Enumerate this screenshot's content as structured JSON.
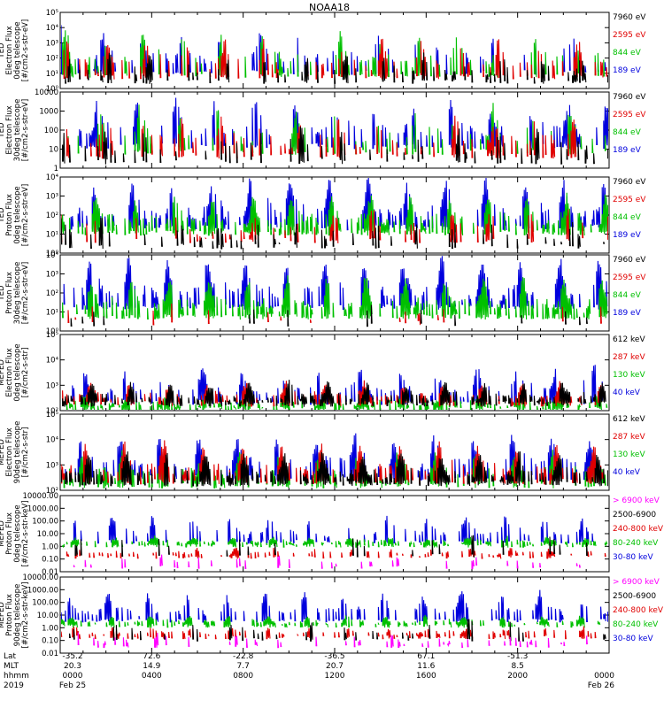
{
  "title": "NOAA18",
  "chart_data": {
    "type": "line",
    "title": "NOAA18",
    "x_ticks": [
      "0000",
      "0400",
      "0800",
      "1200",
      "1600",
      "2000",
      "0000"
    ],
    "x_range_hours": [
      0,
      24
    ],
    "panels": [
      {
        "ylabel_lines": [
          "TED",
          "Electron Flux",
          "0deg telescope",
          "[#/cm2-s-str-eV]"
        ],
        "yticks": [
          "10⁰",
          "10¹",
          "10²",
          "10³",
          "10⁴",
          "10⁵"
        ],
        "ylim_log10": [
          0,
          5
        ],
        "series": [
          {
            "name": "7960 eV",
            "color": "#000000",
            "base": 0.6,
            "amp": 1.6,
            "density": 0.35
          },
          {
            "name": "2595 eV",
            "color": "#e00000",
            "base": 0.9,
            "amp": 2.4,
            "density": 0.45
          },
          {
            "name": "844 eV",
            "color": "#00c000",
            "base": 1.0,
            "amp": 2.7,
            "density": 0.35
          },
          {
            "name": "189 eV",
            "color": "#0000dd",
            "base": 1.2,
            "amp": 2.5,
            "density": 0.4
          }
        ]
      },
      {
        "ylabel_lines": [
          "TED",
          "Electron Flux",
          "30deg telescope",
          "[#/cm2-s-str-eV]"
        ],
        "yticks": [
          "1",
          "10",
          "100",
          "1000",
          "10000"
        ],
        "ylim_log10": [
          0,
          4
        ],
        "series": [
          {
            "name": "7960 eV",
            "color": "#000000",
            "base": 0.5,
            "amp": 1.5,
            "density": 0.3
          },
          {
            "name": "2595 eV",
            "color": "#e00000",
            "base": 0.8,
            "amp": 2.0,
            "density": 0.4
          },
          {
            "name": "844 eV",
            "color": "#00c000",
            "base": 1.0,
            "amp": 2.3,
            "density": 0.3
          },
          {
            "name": "189 eV",
            "color": "#0000dd",
            "base": 1.3,
            "amp": 2.2,
            "density": 0.45
          }
        ]
      },
      {
        "ylabel_lines": [
          "TED",
          "Proton Flux",
          "0deg telescope",
          "[#/cm2-s-str-eV]"
        ],
        "yticks": [
          "10⁰",
          "10¹",
          "10²",
          "10³",
          "10⁴"
        ],
        "ylim_log10": [
          0,
          4
        ],
        "series": [
          {
            "name": "7960 eV",
            "color": "#000000",
            "base": 0.5,
            "amp": 1.2,
            "density": 0.3
          },
          {
            "name": "2595 eV",
            "color": "#e00000",
            "base": 0.8,
            "amp": 1.4,
            "density": 0.3
          },
          {
            "name": "844 eV",
            "color": "#00c000",
            "base": 1.2,
            "amp": 1.8,
            "density": 0.85
          },
          {
            "name": "189 eV",
            "color": "#0000dd",
            "base": 1.5,
            "amp": 2.2,
            "density": 0.75
          }
        ]
      },
      {
        "ylabel_lines": [
          "TED",
          "Proton Flux",
          "30deg telescope",
          "[#/cm2-s-str-eV]"
        ],
        "yticks": [
          "10⁰",
          "10¹",
          "10²",
          "10³",
          "10⁴"
        ],
        "ylim_log10": [
          0,
          4
        ],
        "series": [
          {
            "name": "7960 eV",
            "color": "#000000",
            "base": 0.5,
            "amp": 0.8,
            "density": 0.1
          },
          {
            "name": "2595 eV",
            "color": "#e00000",
            "base": 0.6,
            "amp": 0.8,
            "density": 0.1
          },
          {
            "name": "844 eV",
            "color": "#00c000",
            "base": 0.9,
            "amp": 1.9,
            "density": 0.85
          },
          {
            "name": "189 eV",
            "color": "#0000dd",
            "base": 1.4,
            "amp": 2.3,
            "density": 0.75
          }
        ]
      },
      {
        "ylabel_lines": [
          "MEPED",
          "Electron Flux",
          "0deg telescope",
          "[#/cm2-s-str]"
        ],
        "yticks": [
          "10²",
          "10³",
          "10⁴",
          "10⁵"
        ],
        "ylim_log10": [
          2,
          6
        ],
        "series": [
          {
            "name": "612 keV",
            "color": "#000000",
            "base": 2.5,
            "amp": 0.9,
            "density": 0.9
          },
          {
            "name": "287 keV",
            "color": "#e00000",
            "base": 2.5,
            "amp": 0.9,
            "density": 0.7
          },
          {
            "name": "130 keV",
            "color": "#00c000",
            "base": 2.2,
            "amp": 0.6,
            "density": 0.8
          },
          {
            "name": "40 keV",
            "color": "#0000dd",
            "base": 2.6,
            "amp": 1.6,
            "density": 0.6
          }
        ]
      },
      {
        "ylabel_lines": [
          "MEPED",
          "Electron Flux",
          "90deg telescope",
          "[#/cm2-s-str]"
        ],
        "yticks": [
          "10²",
          "10³",
          "10⁴",
          "10⁵"
        ],
        "ylim_log10": [
          2,
          6
        ],
        "series": [
          {
            "name": "612 keV",
            "color": "#000000",
            "base": 2.5,
            "amp": 1.4,
            "density": 0.9
          },
          {
            "name": "287 keV",
            "color": "#e00000",
            "base": 2.6,
            "amp": 1.8,
            "density": 0.8
          },
          {
            "name": "130 keV",
            "color": "#00c000",
            "base": 2.4,
            "amp": 1.6,
            "density": 0.6
          },
          {
            "name": "40 keV",
            "color": "#0000dd",
            "base": 2.8,
            "amp": 2.0,
            "density": 0.7
          }
        ]
      },
      {
        "ylabel_lines": [
          "MEPED",
          "Proton Flux",
          "0deg telescope",
          "[#/cm2-s-str-keV]"
        ],
        "yticks": [
          "0.01",
          "0.10",
          "1.00",
          "10.00",
          "100.00",
          "1000.00",
          "10000.00"
        ],
        "ylim_log10": [
          -2,
          4
        ],
        "series": [
          {
            "name": "> 6900 keV",
            "color": "#ff00ff",
            "base": -1.5,
            "amp": 0.7,
            "density": 0.15
          },
          {
            "name": "2500-6900",
            "color": "#000000",
            "base": -0.6,
            "amp": 1.5,
            "density": 0.15
          },
          {
            "name": "240-800 keV",
            "color": "#e00000",
            "base": -0.7,
            "amp": 0.5,
            "density": 0.5
          },
          {
            "name": "80-240 keV",
            "color": "#00c000",
            "base": 0.2,
            "amp": 0.5,
            "density": 0.8
          },
          {
            "name": "30-80 keV",
            "color": "#0000dd",
            "base": 0.5,
            "amp": 1.8,
            "density": 0.5
          }
        ]
      },
      {
        "ylabel_lines": [
          "MEPED",
          "Proton Flux",
          "90deg telescope",
          "[#/cm2-s-str-keV]"
        ],
        "yticks": [
          "0.01",
          "0.10",
          "1.00",
          "10.00",
          "100.00",
          "1000.00",
          "10000.00"
        ],
        "ylim_log10": [
          -2,
          4
        ],
        "series": [
          {
            "name": "> 6900 keV",
            "color": "#ff00ff",
            "base": -1.3,
            "amp": 0.8,
            "density": 0.25
          },
          {
            "name": "2500-6900",
            "color": "#000000",
            "base": -0.8,
            "amp": 1.4,
            "density": 0.15
          },
          {
            "name": "240-800 keV",
            "color": "#e00000",
            "base": -0.6,
            "amp": 0.6,
            "density": 0.5
          },
          {
            "name": "80-240 keV",
            "color": "#00c000",
            "base": 0.3,
            "amp": 0.6,
            "density": 0.8
          },
          {
            "name": "30-80 keV",
            "color": "#0000dd",
            "base": 0.7,
            "amp": 2.0,
            "density": 0.6
          }
        ]
      }
    ],
    "footer": {
      "rows": [
        {
          "label": "Lat",
          "values": [
            "-35.2",
            "72.6",
            "-22.8",
            "-36.5",
            "67.1",
            "-51.3",
            ""
          ]
        },
        {
          "label": "MLT",
          "values": [
            "20.3",
            "14.9",
            "7.7",
            "20.7",
            "11.6",
            "8.5",
            ""
          ]
        },
        {
          "label": "hhmm",
          "values": [
            "0000",
            "0400",
            "0800",
            "1200",
            "1600",
            "2000",
            "0000"
          ]
        },
        {
          "label": "2019",
          "values": [
            "Feb 25",
            "",
            "",
            "",
            "",
            "",
            "Feb 26"
          ]
        }
      ]
    }
  }
}
